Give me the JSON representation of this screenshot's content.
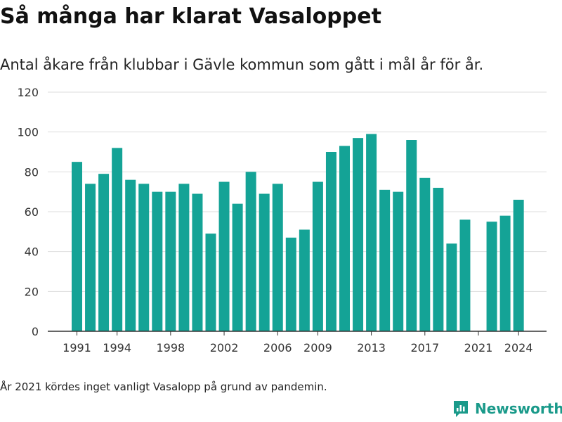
{
  "header": {
    "title": "Så många har klarat Vasaloppet",
    "subtitle": "Antal åkare från klubbar i Gävle kommun som gått i mål år för år."
  },
  "footer": {
    "note": "År 2021 kördes inget vanligt Vasalopp på grund av pandemin.",
    "brand": "Newsworthy"
  },
  "colors": {
    "bar": "#14a396",
    "grid": "#dddddd",
    "axis": "#333333",
    "brand": "#1a9a8a"
  },
  "chart_data": {
    "type": "bar",
    "title": "Så många har klarat Vasaloppet",
    "subtitle": "Antal åkare från klubbar i Gävle kommun som gått i mål år för år.",
    "xlabel": "",
    "ylabel": "",
    "ylim": [
      0,
      120
    ],
    "yticks": [
      0,
      20,
      40,
      60,
      80,
      100,
      120
    ],
    "xticks": [
      1991,
      1994,
      1998,
      2002,
      2006,
      2009,
      2013,
      2017,
      2021,
      2024
    ],
    "grid": true,
    "categories": [
      1991,
      1992,
      1993,
      1994,
      1995,
      1996,
      1997,
      1998,
      1999,
      2000,
      2001,
      2002,
      2003,
      2004,
      2005,
      2006,
      2007,
      2008,
      2009,
      2010,
      2011,
      2012,
      2013,
      2014,
      2015,
      2016,
      2017,
      2018,
      2019,
      2020,
      2021,
      2022,
      2023,
      2024
    ],
    "values": [
      85,
      74,
      79,
      92,
      76,
      74,
      70,
      70,
      74,
      69,
      49,
      75,
      64,
      80,
      69,
      74,
      47,
      51,
      75,
      90,
      93,
      97,
      99,
      71,
      70,
      96,
      77,
      72,
      44,
      56,
      0,
      55,
      58,
      66
    ]
  }
}
